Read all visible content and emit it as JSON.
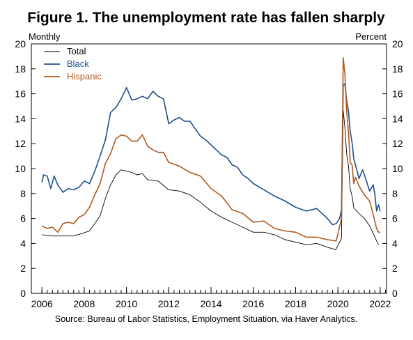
{
  "chart_data": {
    "type": "line",
    "title": "Figure 1. The unemployment rate has fallen sharply",
    "left_unit": "Monthly",
    "right_unit": "Percent",
    "source": "Source: Bureau of Labor Statistics, Employment Situation, via Haver Analytics.",
    "x_range": [
      2005.5,
      2022.3
    ],
    "ylim": [
      0,
      20
    ],
    "y_ticks": [
      0,
      2,
      4,
      6,
      8,
      10,
      12,
      14,
      16,
      18,
      20
    ],
    "x_ticks": [
      2006,
      2008,
      2010,
      2012,
      2014,
      2016,
      2018,
      2020,
      2022
    ],
    "grid": false,
    "legend_position": "top-left",
    "series": [
      {
        "name": "Total",
        "color": "#000000",
        "points": [
          [
            2006.0,
            4.7
          ],
          [
            2006.5,
            4.6
          ],
          [
            2007.0,
            4.6
          ],
          [
            2007.5,
            4.6
          ],
          [
            2007.9,
            4.8
          ],
          [
            2008.25,
            5.0
          ],
          [
            2008.5,
            5.6
          ],
          [
            2008.75,
            6.2
          ],
          [
            2009.0,
            7.6
          ],
          [
            2009.25,
            8.7
          ],
          [
            2009.5,
            9.5
          ],
          [
            2009.75,
            9.9
          ],
          [
            2010.0,
            9.8
          ],
          [
            2010.25,
            9.7
          ],
          [
            2010.5,
            9.5
          ],
          [
            2010.75,
            9.6
          ],
          [
            2011.0,
            9.1
          ],
          [
            2011.5,
            9.0
          ],
          [
            2012.0,
            8.3
          ],
          [
            2012.5,
            8.2
          ],
          [
            2013.0,
            7.9
          ],
          [
            2013.5,
            7.3
          ],
          [
            2014.0,
            6.6
          ],
          [
            2014.5,
            6.1
          ],
          [
            2015.0,
            5.7
          ],
          [
            2015.5,
            5.3
          ],
          [
            2016.0,
            4.9
          ],
          [
            2016.5,
            4.9
          ],
          [
            2017.0,
            4.7
          ],
          [
            2017.5,
            4.3
          ],
          [
            2018.0,
            4.1
          ],
          [
            2018.5,
            3.9
          ],
          [
            2019.0,
            4.0
          ],
          [
            2019.5,
            3.7
          ],
          [
            2019.9,
            3.5
          ],
          [
            2020.17,
            4.4
          ],
          [
            2020.25,
            14.7
          ],
          [
            2020.33,
            13.3
          ],
          [
            2020.42,
            11.1
          ],
          [
            2020.5,
            10.2
          ],
          [
            2020.58,
            8.4
          ],
          [
            2020.67,
            7.8
          ],
          [
            2020.75,
            6.9
          ],
          [
            2020.83,
            6.7
          ],
          [
            2021.0,
            6.4
          ],
          [
            2021.25,
            6.0
          ],
          [
            2021.5,
            5.4
          ],
          [
            2021.67,
            4.8
          ],
          [
            2021.83,
            4.2
          ],
          [
            2021.92,
            3.9
          ]
        ]
      },
      {
        "name": "Black",
        "color": "#1f4e8c",
        "points": [
          [
            2006.0,
            8.9
          ],
          [
            2006.08,
            9.5
          ],
          [
            2006.25,
            9.4
          ],
          [
            2006.42,
            8.4
          ],
          [
            2006.58,
            9.4
          ],
          [
            2006.75,
            8.7
          ],
          [
            2007.0,
            8.1
          ],
          [
            2007.25,
            8.4
          ],
          [
            2007.5,
            8.3
          ],
          [
            2007.75,
            8.5
          ],
          [
            2008.0,
            9.0
          ],
          [
            2008.25,
            8.8
          ],
          [
            2008.5,
            9.8
          ],
          [
            2008.75,
            11.0
          ],
          [
            2009.0,
            12.3
          ],
          [
            2009.25,
            14.5
          ],
          [
            2009.5,
            14.9
          ],
          [
            2009.75,
            15.6
          ],
          [
            2009.92,
            16.2
          ],
          [
            2010.0,
            16.5
          ],
          [
            2010.25,
            15.5
          ],
          [
            2010.5,
            15.6
          ],
          [
            2010.75,
            15.8
          ],
          [
            2011.0,
            15.6
          ],
          [
            2011.25,
            16.2
          ],
          [
            2011.5,
            15.8
          ],
          [
            2011.75,
            15.6
          ],
          [
            2012.0,
            13.6
          ],
          [
            2012.25,
            13.9
          ],
          [
            2012.5,
            14.1
          ],
          [
            2012.75,
            13.8
          ],
          [
            2013.0,
            13.8
          ],
          [
            2013.25,
            13.2
          ],
          [
            2013.5,
            12.6
          ],
          [
            2013.75,
            12.3
          ],
          [
            2014.0,
            11.9
          ],
          [
            2014.25,
            11.5
          ],
          [
            2014.5,
            11.1
          ],
          [
            2014.75,
            10.9
          ],
          [
            2015.0,
            10.3
          ],
          [
            2015.25,
            10.1
          ],
          [
            2015.5,
            9.5
          ],
          [
            2015.75,
            9.2
          ],
          [
            2016.0,
            8.8
          ],
          [
            2016.5,
            8.3
          ],
          [
            2017.0,
            7.8
          ],
          [
            2017.5,
            7.4
          ],
          [
            2018.0,
            6.9
          ],
          [
            2018.5,
            6.6
          ],
          [
            2019.0,
            6.8
          ],
          [
            2019.5,
            6.0
          ],
          [
            2019.75,
            5.5
          ],
          [
            2019.92,
            5.6
          ],
          [
            2020.08,
            6.0
          ],
          [
            2020.17,
            6.7
          ],
          [
            2020.25,
            16.7
          ],
          [
            2020.33,
            16.8
          ],
          [
            2020.42,
            15.4
          ],
          [
            2020.5,
            14.6
          ],
          [
            2020.58,
            13.0
          ],
          [
            2020.67,
            12.1
          ],
          [
            2020.75,
            10.8
          ],
          [
            2020.83,
            10.3
          ],
          [
            2021.0,
            9.2
          ],
          [
            2021.17,
            9.9
          ],
          [
            2021.33,
            9.1
          ],
          [
            2021.5,
            8.2
          ],
          [
            2021.67,
            8.7
          ],
          [
            2021.75,
            7.9
          ],
          [
            2021.83,
            6.6
          ],
          [
            2021.92,
            7.1
          ],
          [
            2022.0,
            6.6
          ]
        ]
      },
      {
        "name": "Hispanic",
        "color": "#b05a1e",
        "points": [
          [
            2006.0,
            5.4
          ],
          [
            2006.25,
            5.2
          ],
          [
            2006.5,
            5.3
          ],
          [
            2006.75,
            4.9
          ],
          [
            2007.0,
            5.6
          ],
          [
            2007.25,
            5.7
          ],
          [
            2007.5,
            5.6
          ],
          [
            2007.75,
            6.1
          ],
          [
            2008.0,
            6.3
          ],
          [
            2008.25,
            6.9
          ],
          [
            2008.5,
            7.9
          ],
          [
            2008.75,
            8.8
          ],
          [
            2009.0,
            10.4
          ],
          [
            2009.25,
            11.2
          ],
          [
            2009.5,
            12.4
          ],
          [
            2009.75,
            12.7
          ],
          [
            2010.0,
            12.6
          ],
          [
            2010.25,
            12.2
          ],
          [
            2010.5,
            12.2
          ],
          [
            2010.75,
            12.7
          ],
          [
            2011.0,
            11.8
          ],
          [
            2011.25,
            11.5
          ],
          [
            2011.5,
            11.3
          ],
          [
            2011.75,
            11.3
          ],
          [
            2012.0,
            10.5
          ],
          [
            2012.5,
            10.2
          ],
          [
            2013.0,
            9.7
          ],
          [
            2013.5,
            9.4
          ],
          [
            2014.0,
            8.4
          ],
          [
            2014.5,
            7.8
          ],
          [
            2015.0,
            6.7
          ],
          [
            2015.5,
            6.4
          ],
          [
            2016.0,
            5.7
          ],
          [
            2016.5,
            5.8
          ],
          [
            2017.0,
            5.2
          ],
          [
            2017.5,
            5.0
          ],
          [
            2018.0,
            4.9
          ],
          [
            2018.5,
            4.5
          ],
          [
            2019.0,
            4.5
          ],
          [
            2019.5,
            4.3
          ],
          [
            2019.92,
            4.2
          ],
          [
            2020.17,
            6.0
          ],
          [
            2020.25,
            18.9
          ],
          [
            2020.33,
            17.6
          ],
          [
            2020.42,
            14.5
          ],
          [
            2020.5,
            12.9
          ],
          [
            2020.58,
            10.5
          ],
          [
            2020.67,
            10.3
          ],
          [
            2020.75,
            8.8
          ],
          [
            2020.83,
            9.3
          ],
          [
            2021.0,
            8.6
          ],
          [
            2021.25,
            7.9
          ],
          [
            2021.5,
            7.4
          ],
          [
            2021.67,
            6.3
          ],
          [
            2021.83,
            5.2
          ],
          [
            2021.92,
            4.9
          ],
          [
            2022.0,
            4.9
          ]
        ]
      }
    ]
  }
}
